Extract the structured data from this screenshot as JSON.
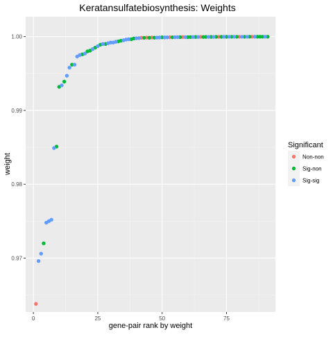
{
  "chart_data": {
    "type": "scatter",
    "title": "Keratansulfatebiosynthesis: Weights",
    "xlabel": "gene-pair rank by weight",
    "ylabel": "weight",
    "xlim": [
      -3,
      94
    ],
    "ylim": [
      0.9627,
      1.0027
    ],
    "x_ticks": [
      0,
      25,
      50,
      75
    ],
    "x_tick_labels": [
      "0",
      "25",
      "50",
      "75"
    ],
    "y_ticks": [
      0.97,
      0.98,
      0.99,
      1.0
    ],
    "y_tick_labels": [
      "0.97",
      "0.98",
      "0.99",
      "1.00"
    ],
    "grid": true,
    "legend": {
      "title": "Significant",
      "placement": "right",
      "entries": [
        {
          "label": "Non-non",
          "color": "#F8766D"
        },
        {
          "label": "Sig-non",
          "color": "#00BA38"
        },
        {
          "label": "Sig-sig",
          "color": "#619CFF"
        }
      ]
    },
    "series": [
      {
        "name": "Non-non",
        "color": "#F8766D",
        "points": [
          [
            1,
            0.9638
          ],
          [
            42,
            0.99985
          ],
          [
            44,
            0.99987
          ],
          [
            46,
            0.99988
          ],
          [
            53,
            0.99992
          ],
          [
            58,
            0.99994
          ],
          [
            65,
            0.99996
          ],
          [
            72,
            0.99997
          ],
          [
            80,
            0.99998
          ],
          [
            85,
            0.99999
          ]
        ]
      },
      {
        "name": "Sig-non",
        "color": "#00BA38",
        "points": [
          [
            4,
            0.972
          ],
          [
            9,
            0.9851
          ],
          [
            10,
            0.9932
          ],
          [
            12,
            0.9939
          ],
          [
            15,
            0.9962
          ],
          [
            19,
            0.9976
          ],
          [
            21,
            0.998
          ],
          [
            22,
            0.9981
          ],
          [
            24,
            0.9985
          ],
          [
            26,
            0.9989
          ],
          [
            28,
            0.999
          ],
          [
            33,
            0.99935
          ],
          [
            34,
            0.99945
          ],
          [
            38,
            0.99965
          ],
          [
            39,
            0.99975
          ],
          [
            43,
            0.99984
          ],
          [
            45,
            0.99985
          ],
          [
            47,
            0.99986
          ],
          [
            50,
            0.9999
          ],
          [
            54,
            0.99991
          ],
          [
            57,
            0.99993
          ],
          [
            60,
            0.99993
          ],
          [
            61,
            0.99994
          ],
          [
            63,
            0.99995
          ],
          [
            66,
            0.99995
          ],
          [
            67,
            0.99996
          ],
          [
            69,
            0.99996
          ],
          [
            71,
            0.99997
          ],
          [
            73,
            0.99997
          ],
          [
            75,
            0.99997
          ],
          [
            77,
            0.99998
          ],
          [
            79,
            0.99998
          ],
          [
            82,
            0.99998
          ],
          [
            84,
            0.99999
          ],
          [
            87,
            0.99999
          ],
          [
            88,
            0.99999
          ],
          [
            89,
            0.99999
          ],
          [
            91,
            0.99999
          ]
        ]
      },
      {
        "name": "Sig-sig",
        "color": "#619CFF",
        "points": [
          [
            2,
            0.9696
          ],
          [
            3,
            0.9706
          ],
          [
            5,
            0.9748
          ],
          [
            6,
            0.975
          ],
          [
            7,
            0.9752
          ],
          [
            8,
            0.9849
          ],
          [
            11,
            0.9934
          ],
          [
            13,
            0.9947
          ],
          [
            14,
            0.9958
          ],
          [
            16,
            0.9962
          ],
          [
            17,
            0.9973
          ],
          [
            18,
            0.9975
          ],
          [
            20,
            0.9977
          ],
          [
            23,
            0.9983
          ],
          [
            25,
            0.9987
          ],
          [
            27,
            0.999
          ],
          [
            29,
            0.9991
          ],
          [
            30,
            0.9992
          ],
          [
            31,
            0.9992
          ],
          [
            32,
            0.9993
          ],
          [
            35,
            0.9995
          ],
          [
            36,
            0.9996
          ],
          [
            37,
            0.99965
          ],
          [
            40,
            0.99978
          ],
          [
            41,
            0.9998
          ],
          [
            48,
            0.99987
          ],
          [
            49,
            0.99988
          ],
          [
            51,
            0.99989
          ],
          [
            52,
            0.9999
          ],
          [
            55,
            0.99992
          ],
          [
            56,
            0.99993
          ],
          [
            59,
            0.99993
          ],
          [
            62,
            0.99994
          ],
          [
            64,
            0.99995
          ],
          [
            68,
            0.99996
          ],
          [
            70,
            0.99996
          ],
          [
            74,
            0.99997
          ],
          [
            76,
            0.99998
          ],
          [
            78,
            0.99998
          ],
          [
            81,
            0.99998
          ],
          [
            83,
            0.99998
          ],
          [
            86,
            0.99999
          ],
          [
            90,
            0.99999
          ]
        ]
      }
    ]
  }
}
